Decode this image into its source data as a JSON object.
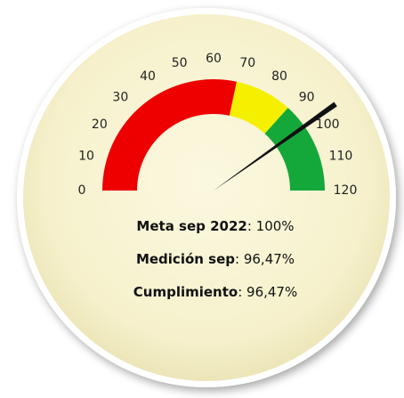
{
  "chart_data": {
    "type": "gauge",
    "ylim": [
      0,
      120
    ],
    "yticks": [
      0,
      10,
      20,
      30,
      40,
      50,
      60,
      70,
      80,
      90,
      100,
      110,
      120
    ],
    "bands": [
      {
        "from": 0,
        "to": 68,
        "color": "#ee0000"
      },
      {
        "from": 68,
        "to": 88,
        "color": "#f5f000"
      },
      {
        "from": 88,
        "to": 120,
        "color": "#14a83a"
      }
    ],
    "value": 96.47,
    "needle_color": "#111111",
    "annotations": [
      {
        "label": "Meta sep 2022",
        "text": ": 100%"
      },
      {
        "label": "Medición sep",
        "text": ": 96,47%"
      },
      {
        "label": "Cumplimiento",
        "text": ": 96,47%"
      }
    ]
  }
}
